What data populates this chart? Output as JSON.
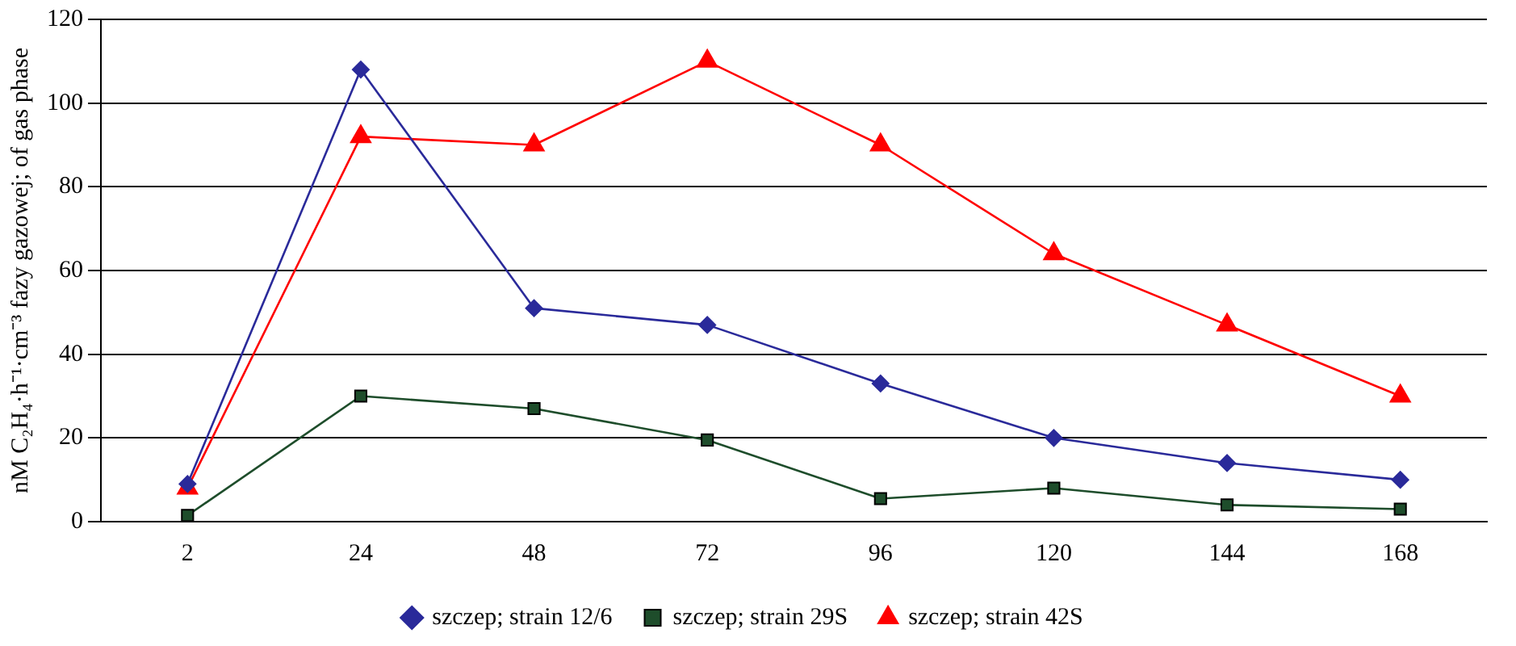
{
  "chart_data": {
    "type": "line",
    "ylabel": "nM C₂H₄·h⁻¹·cm⁻³ fazy gazowej; of gas phase",
    "categories": [
      "2",
      "24",
      "48",
      "72",
      "96",
      "120",
      "144",
      "168"
    ],
    "ylim": [
      0,
      120
    ],
    "yticks": [
      0,
      20,
      40,
      60,
      80,
      100,
      120
    ],
    "grid": "y",
    "legend": "bottom",
    "series": [
      {
        "name": "szczep; strain 12/6",
        "color": "#2a2a9a",
        "marker": "diamond",
        "values": [
          9,
          108,
          51,
          47,
          33,
          20,
          14,
          10
        ]
      },
      {
        "name": "szczep; strain 29S",
        "color": "#1e4d2b",
        "marker": "square",
        "values": [
          1.5,
          30,
          27,
          19.5,
          5.5,
          8,
          4,
          3
        ]
      },
      {
        "name": "szczep; strain 42S",
        "color": "#ff0000",
        "marker": "triangle",
        "values": [
          8,
          92,
          90,
          110,
          90,
          64,
          47,
          30
        ]
      }
    ]
  }
}
